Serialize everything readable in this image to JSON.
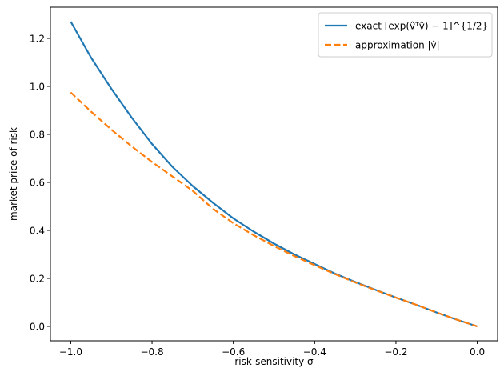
{
  "chart_data": {
    "type": "line",
    "xlabel": "risk-sensitivity σ",
    "ylabel": "market price of risk",
    "xlim": [
      -1.05,
      0.05
    ],
    "ylim": [
      -0.06,
      1.33
    ],
    "x_ticks": [
      -1.0,
      -0.8,
      -0.6,
      -0.4,
      -0.2,
      0.0
    ],
    "x_tick_labels": [
      "−1.0",
      "−0.8",
      "−0.6",
      "−0.4",
      "−0.2",
      "0.0"
    ],
    "y_ticks": [
      0.0,
      0.2,
      0.4,
      0.6,
      0.8,
      1.0,
      1.2
    ],
    "y_tick_labels": [
      "0.0",
      "0.2",
      "0.4",
      "0.6",
      "0.8",
      "1.0",
      "1.2"
    ],
    "grid": false,
    "legend_position": "top-right",
    "series": [
      {
        "name": "exact [exp(v̂ᵀv̂) − 1]^{1/2}",
        "color": "#1f77b4",
        "style": "solid",
        "x": [
          -1.0,
          -0.95,
          -0.9,
          -0.85,
          -0.8,
          -0.75,
          -0.7,
          -0.65,
          -0.6,
          -0.55,
          -0.5,
          -0.45,
          -0.4,
          -0.35,
          -0.3,
          -0.25,
          -0.2,
          -0.15,
          -0.1,
          -0.05,
          0.0
        ],
        "y": [
          1.27,
          1.12,
          0.99,
          0.87,
          0.76,
          0.665,
          0.585,
          0.515,
          0.45,
          0.395,
          0.345,
          0.3,
          0.26,
          0.22,
          0.185,
          0.152,
          0.12,
          0.09,
          0.058,
          0.028,
          0.0
        ]
      },
      {
        "name": "approximation |v̂|",
        "color": "#ff7f0e",
        "style": "dashed",
        "x": [
          -1.0,
          -0.95,
          -0.9,
          -0.85,
          -0.8,
          -0.75,
          -0.7,
          -0.65,
          -0.6,
          -0.55,
          -0.5,
          -0.45,
          -0.4,
          -0.35,
          -0.3,
          -0.25,
          -0.2,
          -0.15,
          -0.1,
          -0.05,
          0.0
        ],
        "y": [
          0.975,
          0.895,
          0.82,
          0.75,
          0.685,
          0.625,
          0.565,
          0.49,
          0.43,
          0.38,
          0.335,
          0.293,
          0.255,
          0.218,
          0.183,
          0.151,
          0.12,
          0.09,
          0.058,
          0.028,
          0.0
        ]
      }
    ]
  }
}
